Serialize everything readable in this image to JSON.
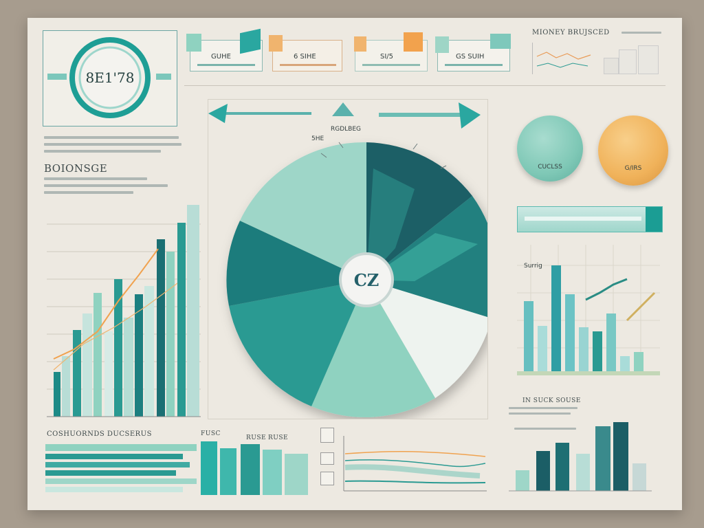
{
  "badge": {
    "value": "8E1'78"
  },
  "top_cards": [
    {
      "label": "GUHE",
      "accent": "#2aa7a0"
    },
    {
      "label": "6 SIHE",
      "accent": "#e9a866"
    },
    {
      "label": "SI/5",
      "accent": "#e9a866"
    },
    {
      "label": "GS SUIH",
      "accent": "#2aa7a0"
    }
  ],
  "money_panel": {
    "title": "MIONEY BRUJSCED"
  },
  "left_heading": "BOIONSGE",
  "pie": {
    "center_label": "CZ",
    "top_label": "RGDLBEG",
    "note_label": "5HE"
  },
  "coins": [
    {
      "label": "CUCLSS",
      "color": "#7fc8b6"
    },
    {
      "label": "G/IRS",
      "color": "#f0b25a"
    }
  ],
  "mini_chart_label": "Surrig",
  "right_caption": "IN SUCK SOUSE",
  "bottom_labels": {
    "left_table": "COSHUORNDS DUCSERUS",
    "mid_a": "FUSC",
    "mid_b": "RUSE",
    "mid_c": "RUSE"
  },
  "colors": {
    "teal_dark": "#1b5e66",
    "teal": "#2a9a92",
    "teal_light": "#8fd2c0",
    "mint": "#c9e7df",
    "orange": "#f0a95a",
    "paper": "#ede9e1"
  }
}
